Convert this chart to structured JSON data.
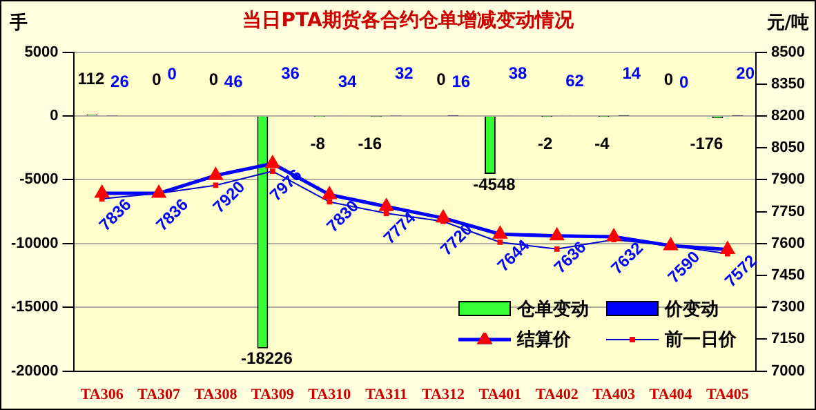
{
  "chart_data": {
    "type": "bar",
    "title": "当日PTA期货各合约仓单增减变动情况",
    "ylabel": "手",
    "y2label": "元/吨",
    "categories": [
      "TA306",
      "TA307",
      "TA308",
      "TA309",
      "TA310",
      "TA311",
      "TA312",
      "TA401",
      "TA402",
      "TA403",
      "TA404",
      "TA405"
    ],
    "series": [
      {
        "name": "仓单变动",
        "color": "#33ff33",
        "values": [
          112,
          0,
          0,
          -18226,
          -8,
          -16,
          0,
          -4548,
          -2,
          -4,
          0,
          -176
        ],
        "value_labels": [
          "112",
          "0",
          "0",
          "-18226",
          "-8",
          "-16",
          "0",
          "-4548",
          "-2",
          "-4",
          "0",
          "-176"
        ]
      },
      {
        "name": "价变动",
        "color": "#0000ff",
        "values": [
          26,
          0,
          46,
          36,
          34,
          32,
          16,
          38,
          62,
          14,
          0,
          20
        ],
        "value_labels": [
          "26",
          "0",
          "46",
          "36",
          "34",
          "32",
          "16",
          "38",
          "62",
          "14",
          "0",
          "20"
        ]
      },
      {
        "name": "结算价",
        "type": "line",
        "axis": "y2",
        "color": "#0000ff",
        "marker": "triangle",
        "values": [
          7836,
          7836,
          7920,
          7976,
          7830,
          7774,
          7720,
          7644,
          7636,
          7632,
          7590,
          7572
        ],
        "value_labels": [
          "7836",
          "7836",
          "7920",
          "7976",
          "7830",
          "7774",
          "7720",
          "7644",
          "7636",
          "7632",
          "7590",
          "7572"
        ]
      },
      {
        "name": "前一日价",
        "type": "line",
        "axis": "y2",
        "color": "#0000cc",
        "marker": "square",
        "values": [
          7810,
          7836,
          7874,
          7940,
          7796,
          7742,
          7704,
          7606,
          7574,
          7618,
          7590,
          7552
        ]
      }
    ],
    "ylim": [
      -20000,
      5000
    ],
    "yticks": [
      -20000,
      -15000,
      -10000,
      -5000,
      0,
      5000
    ],
    "y2lim": [
      7000,
      8500
    ],
    "y2ticks": [
      7000,
      7150,
      7300,
      7450,
      7600,
      7750,
      7900,
      8050,
      8200,
      8350,
      8500
    ],
    "grid": "y",
    "legend": "bottom right"
  }
}
